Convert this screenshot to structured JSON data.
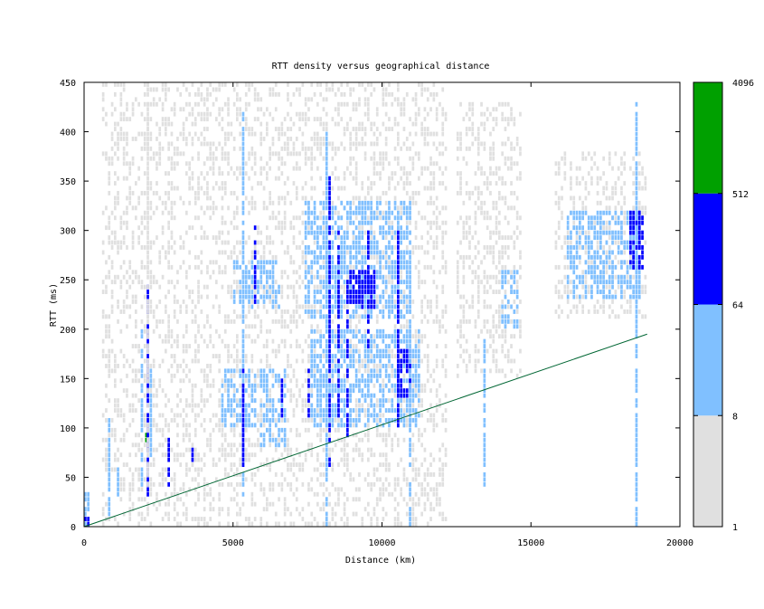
{
  "chart_data": {
    "type": "heatmap",
    "title": "RTT density versus geographical distance",
    "xlabel": "Distance (km)",
    "ylabel": "RTT (ms)",
    "xlim": [
      0,
      20000
    ],
    "ylim": [
      0,
      450
    ],
    "x_ticks": [
      0,
      5000,
      10000,
      15000,
      20000
    ],
    "y_ticks": [
      0,
      50,
      100,
      150,
      200,
      250,
      300,
      350,
      400,
      450
    ],
    "grid": false,
    "colorbar": {
      "scale": "log",
      "tick_labels": [
        "1",
        "8",
        "64",
        "512",
        "4096"
      ],
      "bands": [
        {
          "range": "1-8",
          "color": "#e0e0e0"
        },
        {
          "range": "8-64",
          "color": "#80c0ff"
        },
        {
          "range": "64-512",
          "color": "#0000ff"
        },
        {
          "range": "512-4096",
          "color": "#00a000"
        }
      ]
    },
    "reference_line": {
      "color": "#006633",
      "points": [
        [
          0,
          0
        ],
        [
          18900,
          195
        ]
      ]
    },
    "regions": [
      {
        "level": 1,
        "x": [
          600,
          12200
        ],
        "y": [
          0,
          450
        ]
      },
      {
        "level": 1,
        "x": [
          12500,
          14700
        ],
        "y": [
          150,
          430
        ]
      },
      {
        "level": 1,
        "x": [
          15800,
          18900
        ],
        "y": [
          210,
          380
        ]
      },
      {
        "level": 2,
        "x": [
          5000,
          6600
        ],
        "y": [
          220,
          270
        ]
      },
      {
        "level": 2,
        "x": [
          7400,
          10900
        ],
        "y": [
          210,
          330
        ]
      },
      {
        "level": 2,
        "x": [
          7600,
          11300
        ],
        "y": [
          100,
          200
        ]
      },
      {
        "level": 2,
        "x": [
          4600,
          5800
        ],
        "y": [
          100,
          160
        ]
      },
      {
        "level": 2,
        "x": [
          14000,
          14600
        ],
        "y": [
          200,
          260
        ]
      },
      {
        "level": 2,
        "x": [
          16200,
          18700
        ],
        "y": [
          230,
          320
        ]
      },
      {
        "level": 2,
        "x": [
          5900,
          6800
        ],
        "y": [
          80,
          160
        ]
      },
      {
        "level": 2,
        "x": [
          0,
          200
        ],
        "y": [
          0,
          40
        ]
      },
      {
        "level": 3,
        "x": [
          8900,
          9800
        ],
        "y": [
          220,
          260
        ]
      },
      {
        "level": 3,
        "x": [
          10500,
          11000
        ],
        "y": [
          130,
          180
        ]
      },
      {
        "level": 3,
        "x": [
          18300,
          18800
        ],
        "y": [
          260,
          320
        ]
      },
      {
        "level": 3,
        "x": [
          0,
          200
        ],
        "y": [
          0,
          8
        ]
      },
      {
        "level": 4,
        "x": [
          2050,
          2130
        ],
        "y": [
          85,
          92
        ]
      }
    ],
    "columns": [
      {
        "x": 2100,
        "y": [
          30,
          245
        ],
        "level": 3
      },
      {
        "x": 2100,
        "y": [
          30,
          450
        ],
        "level": 1
      },
      {
        "x": 2200,
        "y": [
          70,
          160
        ],
        "level": 2
      },
      {
        "x": 1900,
        "y": [
          40,
          200
        ],
        "level": 2
      },
      {
        "x": 1100,
        "y": [
          30,
          60
        ],
        "level": 2
      },
      {
        "x": 800,
        "y": [
          10,
          110
        ],
        "level": 2
      },
      {
        "x": 2800,
        "y": [
          40,
          90
        ],
        "level": 3
      },
      {
        "x": 3600,
        "y": [
          60,
          90
        ],
        "level": 3
      },
      {
        "x": 5300,
        "y": [
          30,
          420
        ],
        "level": 2
      },
      {
        "x": 5300,
        "y": [
          60,
          160
        ],
        "level": 3
      },
      {
        "x": 5700,
        "y": [
          220,
          310
        ],
        "level": 3
      },
      {
        "x": 6600,
        "y": [
          110,
          150
        ],
        "level": 3
      },
      {
        "x": 7500,
        "y": [
          110,
          160
        ],
        "level": 3
      },
      {
        "x": 8100,
        "y": [
          0,
          400
        ],
        "level": 2
      },
      {
        "x": 8200,
        "y": [
          60,
          355
        ],
        "level": 3
      },
      {
        "x": 8500,
        "y": [
          110,
          300
        ],
        "level": 3
      },
      {
        "x": 8800,
        "y": [
          90,
          250
        ],
        "level": 3
      },
      {
        "x": 9500,
        "y": [
          180,
          300
        ],
        "level": 3
      },
      {
        "x": 10500,
        "y": [
          100,
          300
        ],
        "level": 3
      },
      {
        "x": 10900,
        "y": [
          0,
          330
        ],
        "level": 2
      },
      {
        "x": 13400,
        "y": [
          40,
          190
        ],
        "level": 2
      },
      {
        "x": 18500,
        "y": [
          0,
          430
        ],
        "level": 2
      },
      {
        "x": 18600,
        "y": [
          260,
          320
        ],
        "level": 3
      }
    ]
  }
}
